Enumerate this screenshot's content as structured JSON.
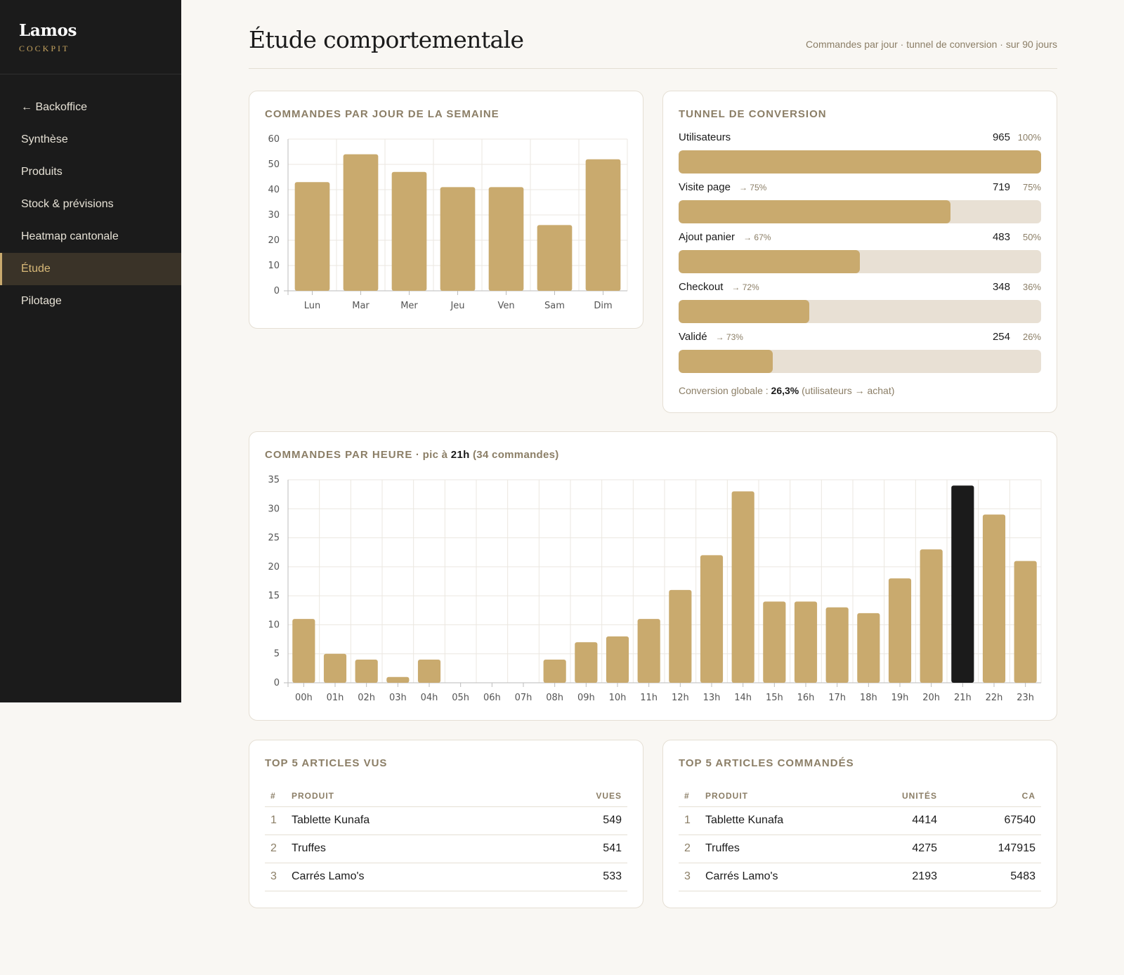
{
  "brand": {
    "name": "Lamos",
    "subtitle": "COCKPIT"
  },
  "nav": [
    {
      "label": "← Backoffice",
      "active": false
    },
    {
      "label": "Synthèse",
      "active": false
    },
    {
      "label": "Produits",
      "active": false
    },
    {
      "label": "Stock & prévisions",
      "active": false
    },
    {
      "label": "Heatmap cantonale",
      "active": false
    },
    {
      "label": "Étude",
      "active": true
    },
    {
      "label": "Pilotage",
      "active": false
    }
  ],
  "header": {
    "title": "Étude comportementale",
    "subtitle": "Commandes par jour · tunnel de conversion · sur 90 jours"
  },
  "weekday_card": {
    "title": "COMMANDES PAR JOUR DE LA SEMAINE"
  },
  "funnel": {
    "title": "TUNNEL DE CONVERSION",
    "steps": [
      {
        "label": "Utilisateurs",
        "step_rate": "",
        "count": "965",
        "pct": "100%",
        "fraction": 1.0
      },
      {
        "label": "Visite page",
        "step_rate": "→ 75%",
        "count": "719",
        "pct": "75%",
        "fraction": 0.75
      },
      {
        "label": "Ajout panier",
        "step_rate": "→ 67%",
        "count": "483",
        "pct": "50%",
        "fraction": 0.5
      },
      {
        "label": "Checkout",
        "step_rate": "→ 72%",
        "count": "348",
        "pct": "36%",
        "fraction": 0.36
      },
      {
        "label": "Validé",
        "step_rate": "→ 73%",
        "count": "254",
        "pct": "26%",
        "fraction": 0.26
      }
    ],
    "global_prefix": "Conversion globale : ",
    "global_value": "26,3%",
    "global_suffix": " (utilisateurs → achat)"
  },
  "hourly_card": {
    "title_main": "COMMANDES PAR HEURE",
    "title_sep": " · pic à ",
    "title_peak": "21h",
    "title_rest": " (34 commandes)"
  },
  "chart_data": [
    {
      "type": "bar",
      "categories": [
        "Lun",
        "Mar",
        "Mer",
        "Jeu",
        "Ven",
        "Sam",
        "Dim"
      ],
      "values": [
        43,
        54,
        47,
        41,
        41,
        26,
        52
      ],
      "title": "COMMANDES PAR JOUR DE LA SEMAINE",
      "ylim": [
        0,
        60
      ],
      "yticks": [
        0,
        10,
        20,
        30,
        40,
        50,
        60
      ],
      "grid": true
    },
    {
      "type": "bar",
      "categories": [
        "00h",
        "01h",
        "02h",
        "03h",
        "04h",
        "05h",
        "06h",
        "07h",
        "08h",
        "09h",
        "10h",
        "11h",
        "12h",
        "13h",
        "14h",
        "15h",
        "16h",
        "17h",
        "18h",
        "19h",
        "20h",
        "21h",
        "22h",
        "23h"
      ],
      "values": [
        11,
        5,
        4,
        1,
        4,
        0,
        0,
        0,
        4,
        7,
        8,
        11,
        16,
        22,
        33,
        14,
        14,
        13,
        12,
        18,
        23,
        34,
        29,
        21
      ],
      "title": "COMMANDES PAR HEURE · pic à 21h (34 commandes)",
      "ylim": [
        0,
        35
      ],
      "yticks": [
        0,
        5,
        10,
        15,
        20,
        25,
        30,
        35
      ],
      "highlight": "21h",
      "grid": true
    }
  ],
  "top_viewed": {
    "title": "TOP 5 ARTICLES VUS",
    "headers": {
      "num": "#",
      "product": "PRODUIT",
      "views": "VUES"
    },
    "rows": [
      {
        "num": "1",
        "product": "Tablette Kunafa",
        "views": "549"
      },
      {
        "num": "2",
        "product": "Truffes",
        "views": "541"
      },
      {
        "num": "3",
        "product": "Carrés Lamo's",
        "views": "533"
      }
    ]
  },
  "top_ordered": {
    "title": "TOP 5 ARTICLES COMMANDÉS",
    "headers": {
      "num": "#",
      "product": "PRODUIT",
      "units": "UNITÉS",
      "revenue": "CA"
    },
    "rows": [
      {
        "num": "1",
        "product": "Tablette Kunafa",
        "units": "4414",
        "revenue": "67540"
      },
      {
        "num": "2",
        "product": "Truffes",
        "units": "4275",
        "revenue": "147915"
      },
      {
        "num": "3",
        "product": "Carrés Lamo's",
        "units": "2193",
        "revenue": "5483"
      }
    ]
  },
  "colors": {
    "bar": "#c9aa6e",
    "bar_highlight": "#1b1b1b",
    "sidebar_bg": "#1b1b1b",
    "accent": "#c9aa6e",
    "track": "#e8e0d4"
  }
}
